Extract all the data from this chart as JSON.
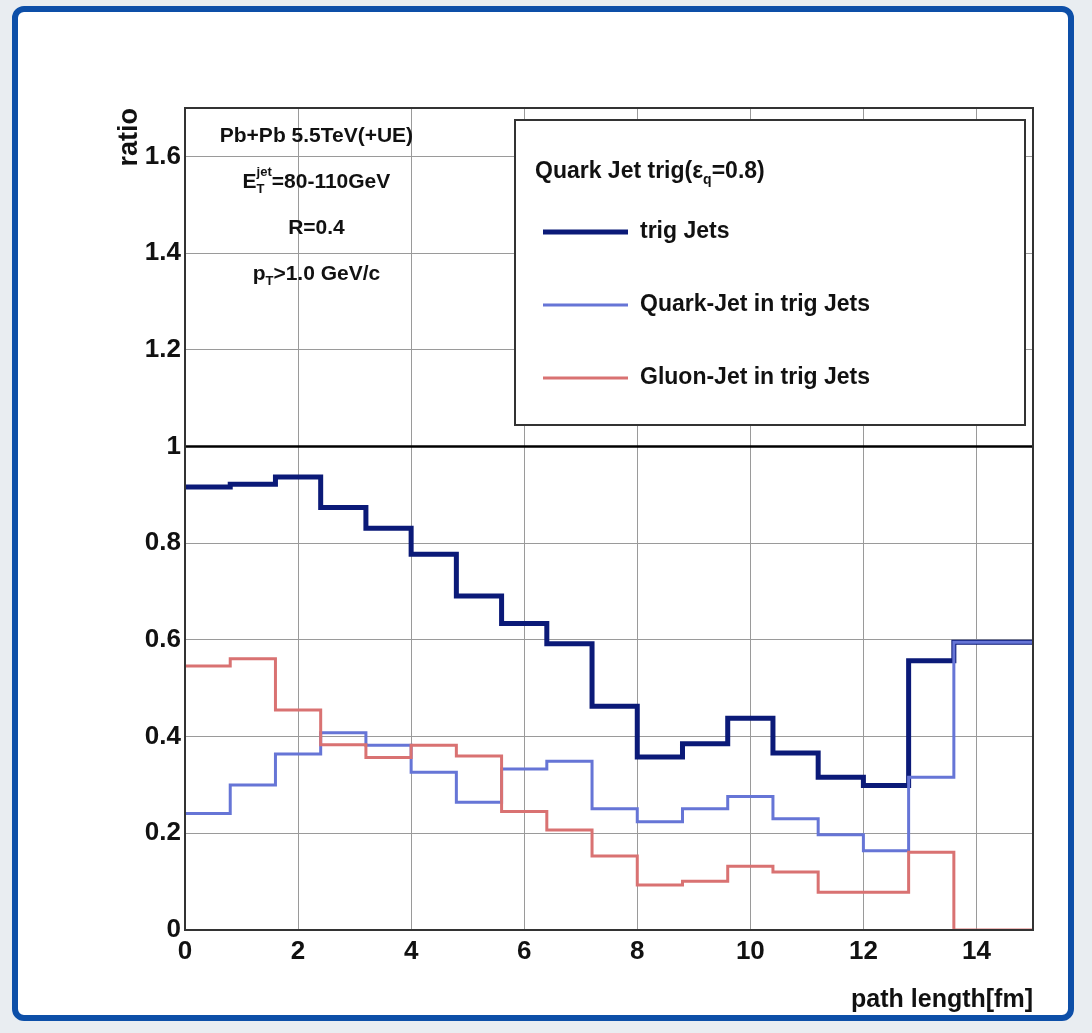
{
  "chart_data": {
    "type": "histogram",
    "bins": [
      0,
      0.8,
      1.6,
      2.4,
      3.2,
      4.0,
      4.8,
      5.6,
      6.4,
      7.2,
      8.0,
      8.8,
      9.6,
      10.4,
      11.2,
      12.0,
      12.8,
      13.6,
      14.4,
      15
    ],
    "series": [
      {
        "name": "trig Jets",
        "color": "#0b1a78",
        "values": [
          0.916,
          0.922,
          0.937,
          0.874,
          0.831,
          0.777,
          0.691,
          0.634,
          0.592,
          0.463,
          0.358,
          0.385,
          0.438,
          0.366,
          0.316,
          0.299,
          0.557,
          0.595,
          0.595
        ]
      },
      {
        "name": "Quark-Jet in trig Jets",
        "color": "#6675d6",
        "values": [
          0.241,
          0.3,
          0.364,
          0.408,
          0.382,
          0.326,
          0.264,
          0.333,
          0.349,
          0.251,
          0.224,
          0.251,
          0.276,
          0.23,
          0.197,
          0.164,
          0.316,
          0.595,
          0.595
        ]
      },
      {
        "name": "Gluon-Jet in trig Jets",
        "color": "#d97272",
        "values": [
          0.546,
          0.561,
          0.455,
          0.383,
          0.357,
          0.382,
          0.36,
          0.245,
          0.207,
          0.153,
          0.093,
          0.101,
          0.132,
          0.12,
          0.078,
          0.078,
          0.161,
          0,
          0
        ]
      }
    ],
    "xlabel": "path length[fm]",
    "ylabel": "ratio",
    "legend_title": "Quark Jet trig(ε$_{q}$=0.8)",
    "annotations": [
      "Pb+Pb 5.5TeV(+UE)",
      "E$_{T}$$^{jet}$=80-110GeV",
      "R=0.4",
      "p$_{T}$>1.0 GeV/c"
    ],
    "xlim": [
      0,
      15
    ],
    "xticks": [
      0,
      2,
      4,
      6,
      8,
      10,
      12,
      14
    ],
    "ylim": [
      0,
      1.7
    ],
    "yticks": [
      0,
      0.2,
      0.4,
      0.6,
      0.8,
      1,
      1.2,
      1.4,
      1.6
    ],
    "ref_lines": [
      {
        "axis": "y",
        "value": 1,
        "color": "#000000"
      }
    ],
    "grid": true,
    "legend": "top right"
  }
}
